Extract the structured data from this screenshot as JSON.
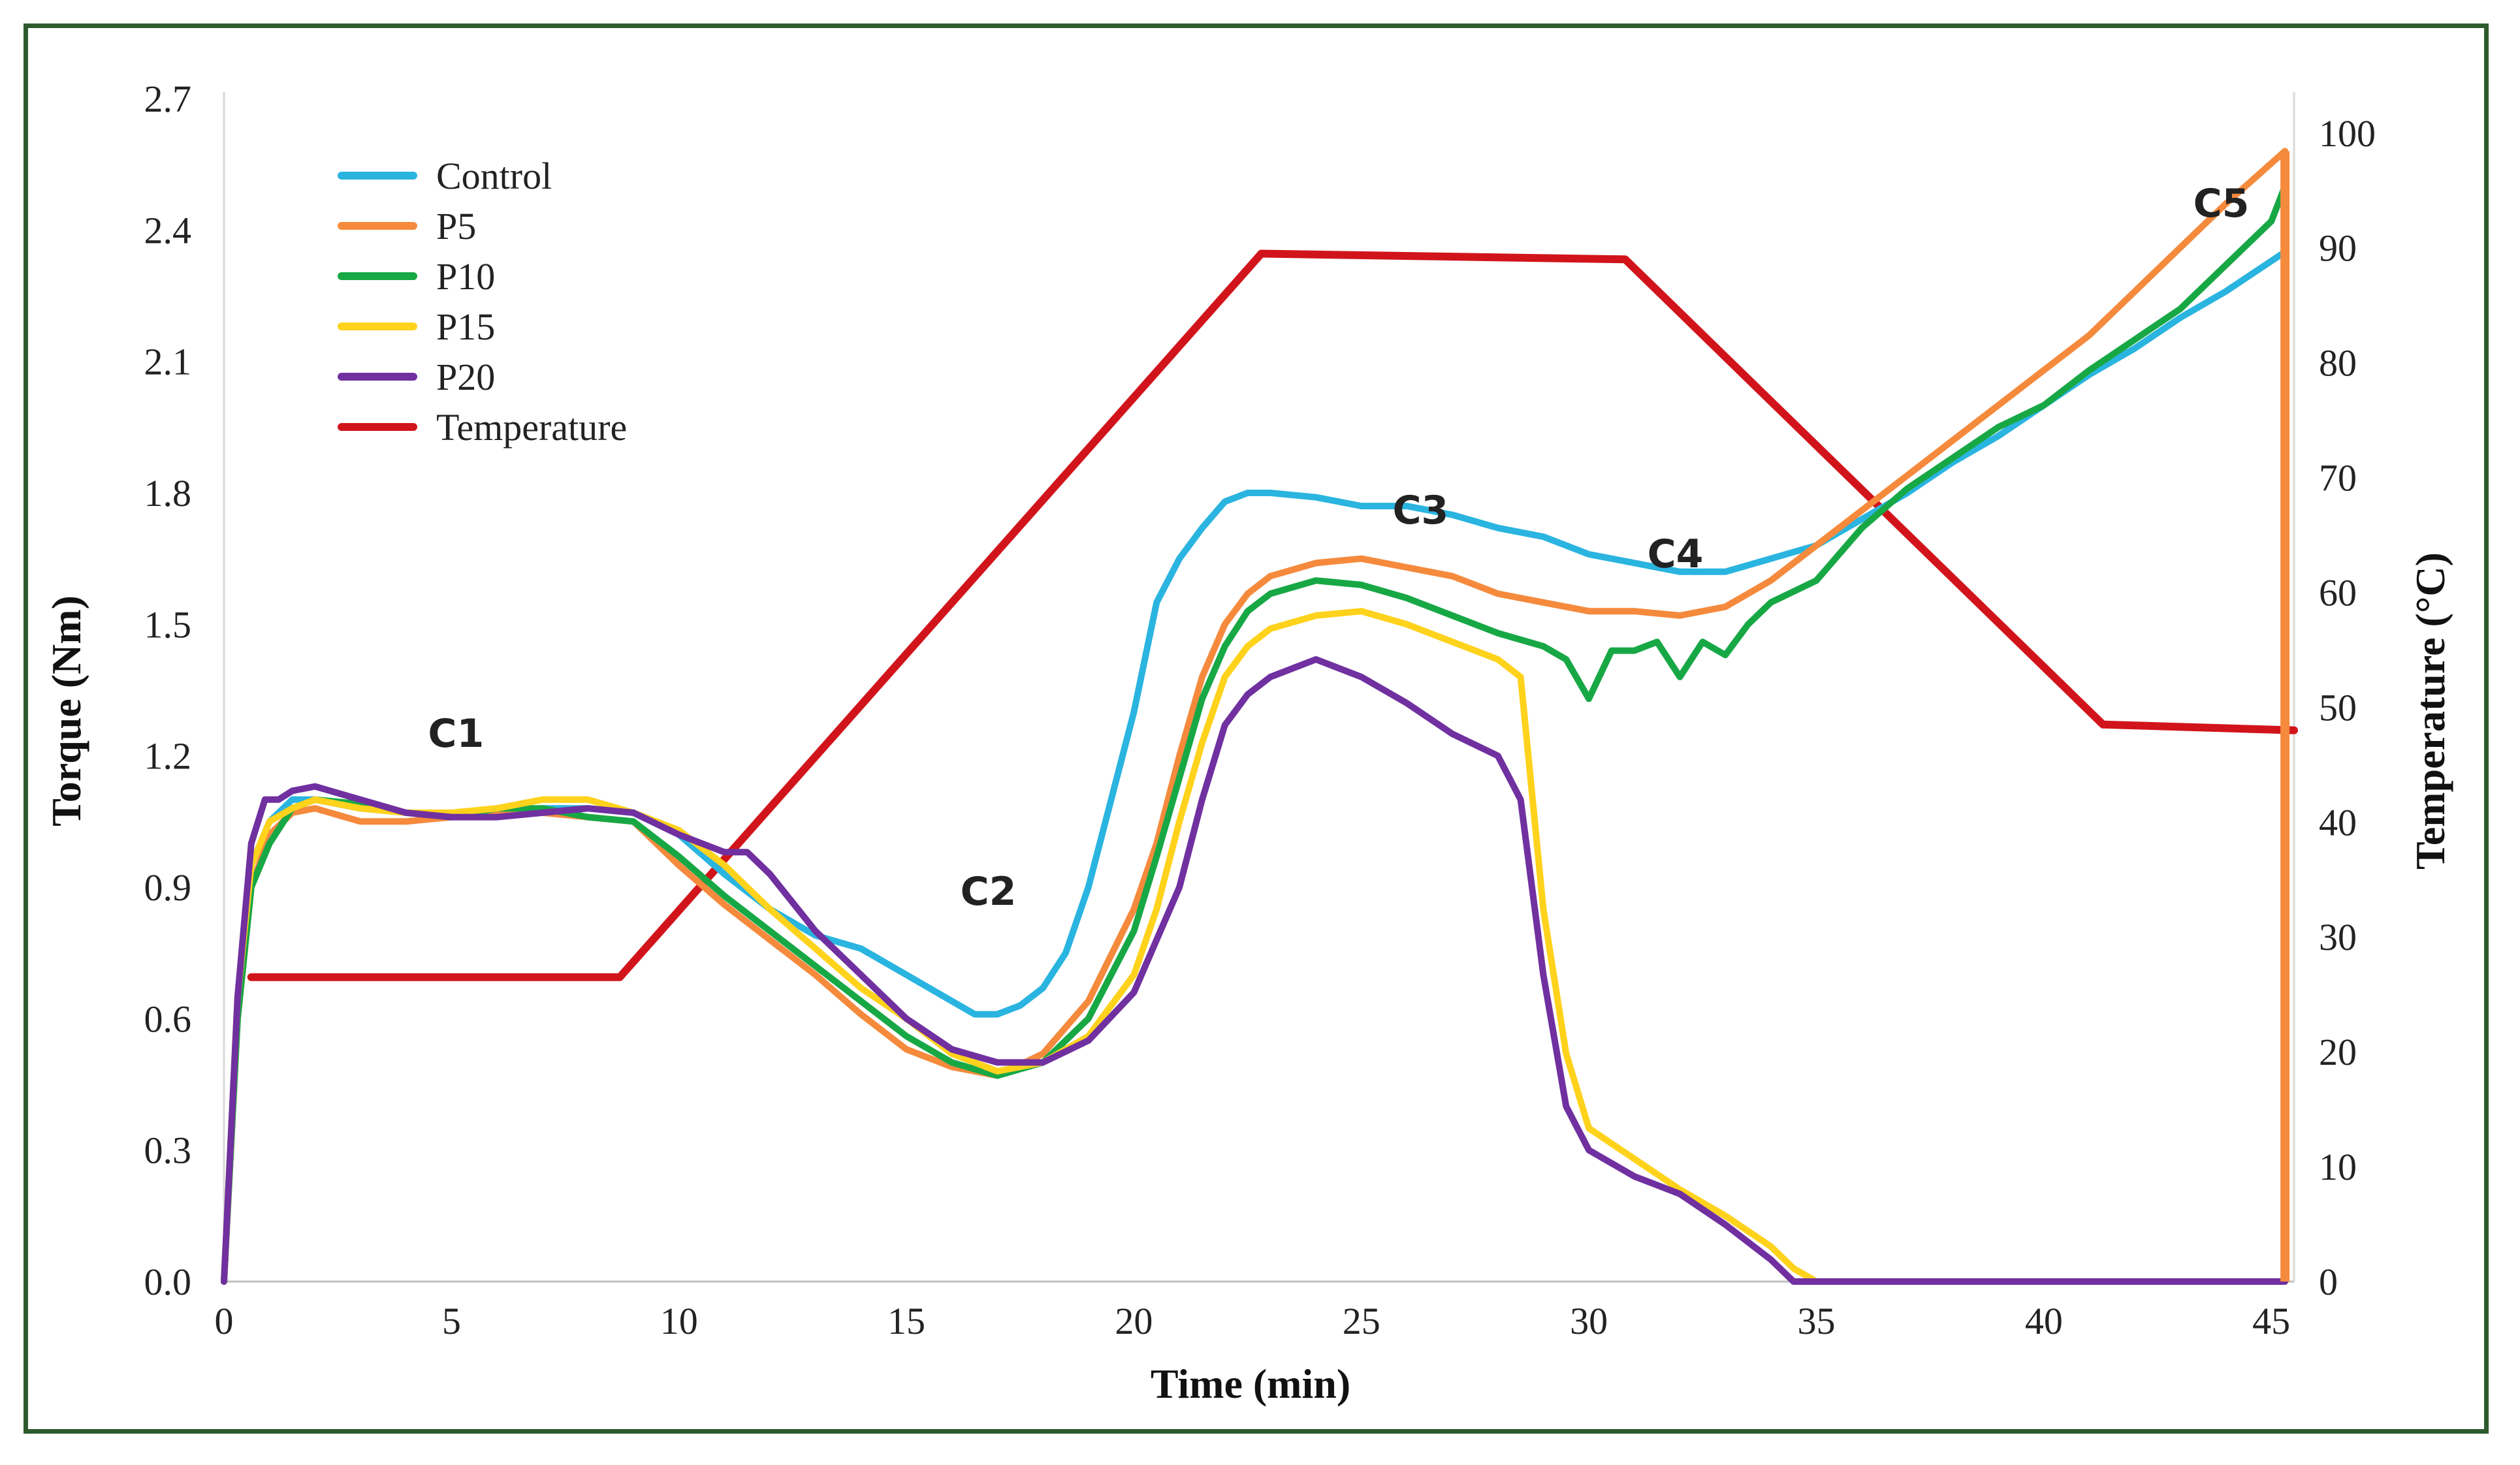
{
  "chart_data": {
    "type": "line",
    "title": "",
    "xlabel": "Time (min)",
    "ylabel": "Torque (Nm)",
    "y2label": "Temperature (°C)",
    "xlim": [
      0,
      45.5
    ],
    "ylim": [
      0,
      2.7
    ],
    "y2lim": [
      0,
      103
    ],
    "xticks": [
      "0",
      "5",
      "10",
      "15",
      "20",
      "25",
      "30",
      "35",
      "40",
      "45"
    ],
    "yticks": [
      "0.0",
      "0.3",
      "0.6",
      "0.9",
      "1.2",
      "1.5",
      "1.8",
      "2.1",
      "2.4",
      "2.7"
    ],
    "y2ticks": [
      "0",
      "10",
      "20",
      "30",
      "40",
      "50",
      "60",
      "70",
      "80",
      "90",
      "100"
    ],
    "legend_position": "top-left",
    "grid": false,
    "series": [
      {
        "name": "Control",
        "color": "#2ab4e0",
        "axis": "left",
        "x": [
          0,
          0.3,
          0.6,
          1,
          1.5,
          2,
          3,
          4,
          5,
          6,
          7,
          8,
          9,
          10,
          11,
          12,
          13,
          14,
          15,
          16,
          16.5,
          17,
          17.5,
          18,
          18.5,
          19,
          19.5,
          20,
          20.5,
          21,
          21.5,
          22,
          22.5,
          23,
          24,
          25,
          26,
          27,
          28,
          29,
          30,
          31,
          32,
          33,
          34,
          35,
          36,
          37,
          38,
          39,
          40,
          41,
          42,
          43,
          44,
          45.3
        ],
        "y": [
          0,
          0.65,
          0.95,
          1.05,
          1.1,
          1.1,
          1.08,
          1.07,
          1.06,
          1.07,
          1.08,
          1.08,
          1.07,
          1.02,
          0.93,
          0.85,
          0.79,
          0.76,
          0.7,
          0.64,
          0.61,
          0.61,
          0.63,
          0.67,
          0.75,
          0.9,
          1.1,
          1.3,
          1.55,
          1.65,
          1.72,
          1.78,
          1.8,
          1.8,
          1.79,
          1.77,
          1.77,
          1.75,
          1.72,
          1.7,
          1.66,
          1.64,
          1.62,
          1.62,
          1.65,
          1.68,
          1.74,
          1.8,
          1.87,
          1.93,
          2.0,
          2.07,
          2.13,
          2.2,
          2.26,
          2.35
        ]
      },
      {
        "name": "P5",
        "color": "#f58a3d",
        "axis": "left",
        "x": [
          0,
          0.3,
          0.6,
          1,
          1.5,
          2,
          3,
          4,
          5,
          6,
          7,
          8,
          9,
          10,
          11,
          12,
          13,
          14,
          15,
          16,
          17,
          18,
          19,
          20,
          20.5,
          21,
          21.5,
          22,
          22.5,
          23,
          24,
          25,
          26,
          27,
          28,
          29,
          30,
          31,
          32,
          33,
          34,
          35,
          36,
          37,
          38,
          39,
          40,
          41,
          42,
          43,
          44,
          45.3
        ],
        "y": [
          0,
          0.6,
          0.9,
          1.02,
          1.07,
          1.08,
          1.05,
          1.05,
          1.06,
          1.07,
          1.07,
          1.06,
          1.05,
          0.95,
          0.86,
          0.78,
          0.7,
          0.61,
          0.53,
          0.49,
          0.47,
          0.52,
          0.64,
          0.85,
          1.0,
          1.2,
          1.38,
          1.5,
          1.57,
          1.61,
          1.64,
          1.65,
          1.63,
          1.61,
          1.57,
          1.55,
          1.53,
          1.53,
          1.52,
          1.54,
          1.6,
          1.68,
          1.76,
          1.84,
          1.92,
          2.0,
          2.08,
          2.16,
          2.26,
          2.36,
          2.46,
          2.58
        ]
      },
      {
        "name": "P10",
        "color": "#17a845",
        "axis": "left",
        "x": [
          0,
          0.3,
          0.6,
          1,
          1.5,
          2,
          3,
          4,
          5,
          6,
          7,
          8,
          9,
          10,
          11,
          12,
          13,
          14,
          15,
          16,
          17,
          18,
          19,
          20,
          20.5,
          21,
          21.5,
          22,
          22.5,
          23,
          24,
          25,
          26,
          27,
          28,
          29,
          29.5,
          30,
          30.5,
          31,
          31.5,
          32,
          32.5,
          33,
          33.5,
          34,
          35,
          36,
          37,
          38,
          39,
          40,
          41,
          42,
          43,
          44,
          45,
          45.3
        ],
        "y": [
          0,
          0.6,
          0.9,
          1.0,
          1.08,
          1.1,
          1.09,
          1.07,
          1.06,
          1.08,
          1.08,
          1.06,
          1.05,
          0.97,
          0.88,
          0.8,
          0.72,
          0.64,
          0.56,
          0.5,
          0.47,
          0.5,
          0.6,
          0.8,
          0.97,
          1.15,
          1.33,
          1.45,
          1.53,
          1.57,
          1.6,
          1.59,
          1.56,
          1.52,
          1.48,
          1.45,
          1.42,
          1.33,
          1.44,
          1.44,
          1.46,
          1.38,
          1.46,
          1.43,
          1.5,
          1.55,
          1.6,
          1.72,
          1.81,
          1.88,
          1.95,
          2.0,
          2.08,
          2.15,
          2.22,
          2.32,
          2.42,
          2.5
        ]
      },
      {
        "name": "P15",
        "color": "#ffd21c",
        "axis": "left",
        "x": [
          0,
          0.3,
          0.6,
          1,
          1.5,
          2,
          3,
          4,
          5,
          6,
          7,
          8,
          9,
          10,
          11,
          12,
          13,
          14,
          15,
          16,
          17,
          18,
          19,
          20,
          20.5,
          21,
          21.5,
          22,
          22.5,
          23,
          24,
          25,
          26,
          27,
          28,
          28.5,
          29,
          29.5,
          30,
          31,
          32,
          33,
          34,
          34.5,
          35,
          40,
          45.3
        ],
        "y": [
          0,
          0.65,
          0.95,
          1.05,
          1.08,
          1.1,
          1.08,
          1.07,
          1.07,
          1.08,
          1.1,
          1.1,
          1.07,
          1.03,
          0.95,
          0.85,
          0.76,
          0.67,
          0.6,
          0.52,
          0.48,
          0.5,
          0.56,
          0.7,
          0.85,
          1.05,
          1.23,
          1.38,
          1.45,
          1.49,
          1.52,
          1.53,
          1.5,
          1.46,
          1.42,
          1.38,
          0.85,
          0.52,
          0.35,
          0.28,
          0.21,
          0.15,
          0.08,
          0.03,
          0.0,
          0.0,
          0.0
        ]
      },
      {
        "name": "P20",
        "color": "#7030a0",
        "axis": "left",
        "x": [
          0,
          0.3,
          0.6,
          0.9,
          1.2,
          1.5,
          2,
          3,
          4,
          5,
          6,
          7,
          8,
          9,
          10,
          11,
          11.5,
          12,
          13,
          14,
          15,
          16,
          17,
          18,
          19,
          20,
          20.5,
          21,
          21.5,
          22,
          22.5,
          23,
          24,
          25,
          26,
          27,
          28,
          28.5,
          29,
          29.5,
          30,
          31,
          32,
          33,
          34,
          34.5,
          35,
          40,
          45.3
        ],
        "y": [
          0,
          0.65,
          1.0,
          1.1,
          1.1,
          1.12,
          1.13,
          1.1,
          1.07,
          1.06,
          1.06,
          1.07,
          1.08,
          1.07,
          1.02,
          0.98,
          0.98,
          0.93,
          0.8,
          0.7,
          0.6,
          0.53,
          0.5,
          0.5,
          0.55,
          0.66,
          0.78,
          0.9,
          1.1,
          1.27,
          1.34,
          1.38,
          1.42,
          1.38,
          1.32,
          1.25,
          1.2,
          1.1,
          0.7,
          0.4,
          0.3,
          0.24,
          0.2,
          0.13,
          0.05,
          0.0,
          0.0,
          0.0,
          0.0
        ]
      },
      {
        "name": "Temperature",
        "color": "#d1141b",
        "axis": "right",
        "x": [
          0.6,
          8.7,
          22.8,
          30.8,
          41.3,
          45.5
        ],
        "y": [
          26.5,
          26.5,
          89.5,
          89,
          48.5,
          48
        ]
      }
    ],
    "extra_series": {
      "name": "",
      "color": "#f58a3d",
      "axis": "left",
      "x": [
        45.3,
        45.3
      ],
      "y": [
        0,
        2.58
      ]
    },
    "annotations": [
      {
        "text": "C1",
        "x": 5.1,
        "y": 1.22
      },
      {
        "text": "C2",
        "x": 16.8,
        "y": 0.86
      },
      {
        "text": "C3",
        "x": 26.3,
        "y": 1.73
      },
      {
        "text": "C4",
        "x": 31.9,
        "y": 1.63
      },
      {
        "text": "C5",
        "x": 43.9,
        "y": 2.43
      }
    ]
  }
}
